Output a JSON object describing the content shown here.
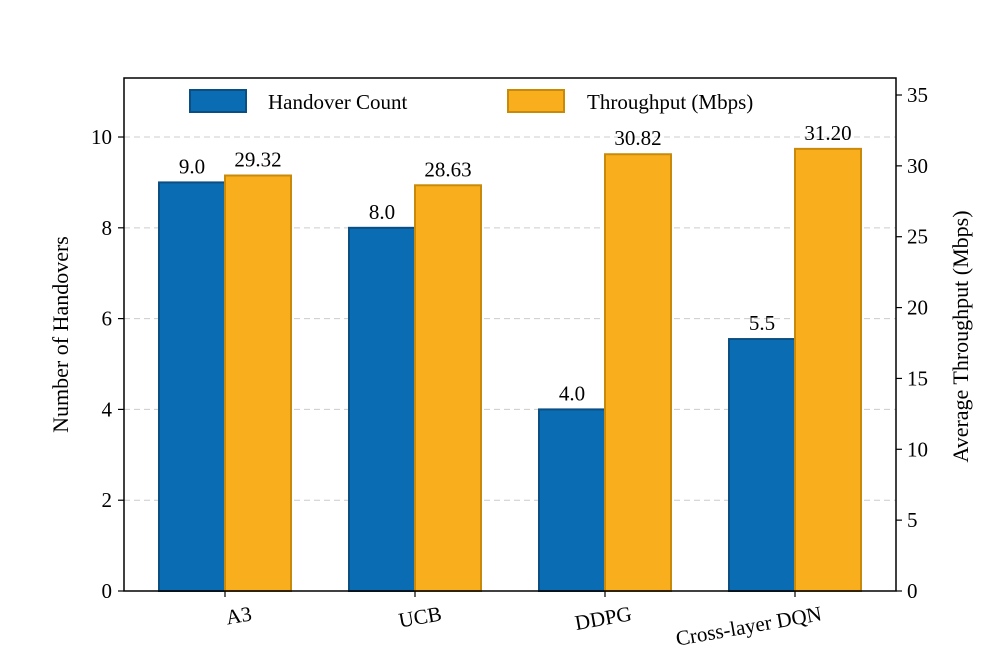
{
  "chart_data": {
    "type": "bar",
    "categories": [
      "A3",
      "UCB",
      "DDPG",
      "Cross-layer DQN"
    ],
    "series": [
      {
        "name": "Handover Count",
        "axis": "left",
        "values": [
          9.0,
          8.0,
          4.0,
          5.55
        ],
        "labels": [
          "9.0",
          "8.0",
          "4.0",
          "5.5"
        ],
        "color": "#0a6db3",
        "edge": "#0b4f82"
      },
      {
        "name": "Throughput (Mbps)",
        "axis": "right",
        "values": [
          29.32,
          28.63,
          30.82,
          31.2
        ],
        "labels": [
          "29.32",
          "28.63",
          "30.82",
          "31.20"
        ],
        "color": "#f9ae1e",
        "edge": "#c98a0a"
      }
    ],
    "ylabel": "Number of Handovers",
    "ylabel_right": "Average Throughput (Mbps)",
    "ylim": [
      0,
      11.3
    ],
    "ylim_right": [
      0,
      36.2
    ],
    "yticks": [
      0,
      2,
      4,
      6,
      8,
      10
    ],
    "yticks_right": [
      0,
      5,
      10,
      15,
      20,
      25,
      30,
      35
    ],
    "legend_position": "top-center",
    "grid": "y-dashed"
  }
}
